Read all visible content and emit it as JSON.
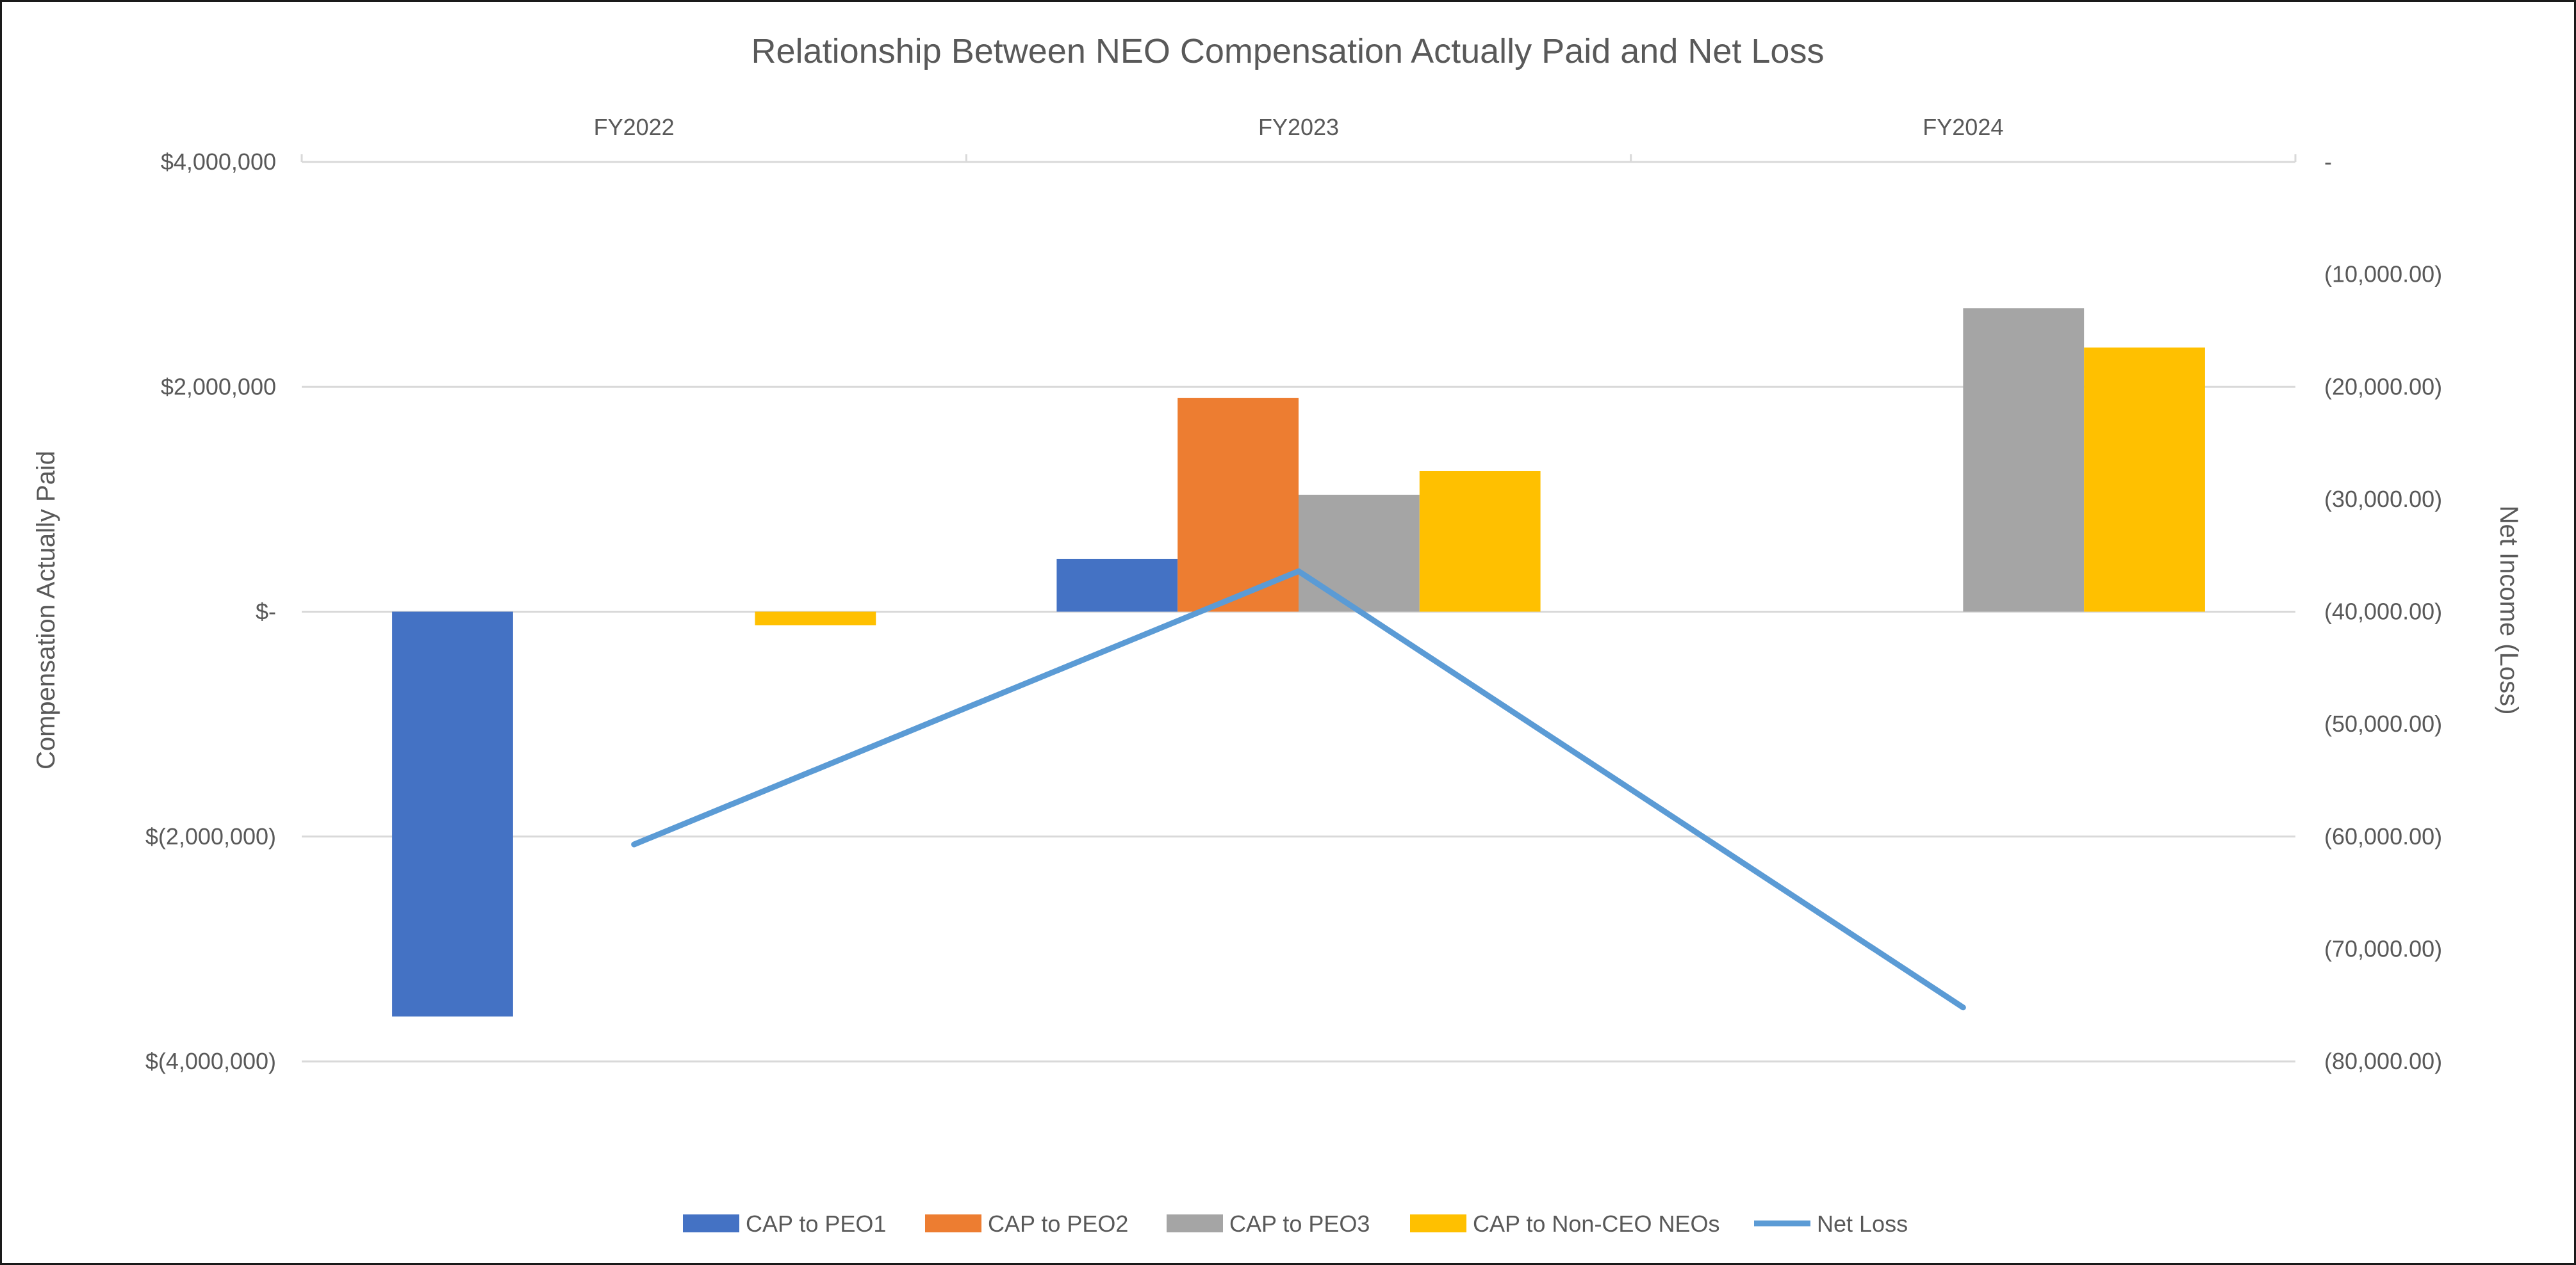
{
  "chart_data": {
    "type": "bar",
    "title": "Relationship Between NEO Compensation Actually Paid and Net Loss",
    "categories": [
      "FY2022",
      "FY2023",
      "FY2024"
    ],
    "ylabel": "Compensation Actually Paid",
    "y2label": "Net Income (Loss)",
    "ylim": [
      -4000000,
      4000000
    ],
    "y2lim": [
      -80000,
      0
    ],
    "yticks": [
      {
        "value": 4000000,
        "label": "$4,000,000"
      },
      {
        "value": 2000000,
        "label": "$2,000,000"
      },
      {
        "value": 0,
        "label": "$-"
      },
      {
        "value": -2000000,
        "label": "$(2,000,000)"
      },
      {
        "value": -4000000,
        "label": "$(4,000,000)"
      }
    ],
    "y2ticks": [
      {
        "value": 0,
        "label": "-"
      },
      {
        "value": -10000,
        "label": "(10,000.00)"
      },
      {
        "value": -20000,
        "label": "(20,000.00)"
      },
      {
        "value": -30000,
        "label": "(30,000.00)"
      },
      {
        "value": -40000,
        "label": "(40,000.00)"
      },
      {
        "value": -50000,
        "label": "(50,000.00)"
      },
      {
        "value": -60000,
        "label": "(60,000.00)"
      },
      {
        "value": -70000,
        "label": "(70,000.00)"
      },
      {
        "value": -80000,
        "label": "(80,000.00)"
      }
    ],
    "grid": true,
    "legend_position": "bottom",
    "series": [
      {
        "name": "CAP to PEO1",
        "type": "bar",
        "color": "#4472C4",
        "values": [
          -3600000,
          470000,
          null
        ]
      },
      {
        "name": "CAP to PEO2",
        "type": "bar",
        "color": "#ED7D31",
        "values": [
          null,
          1900000,
          null
        ]
      },
      {
        "name": "CAP to PEO3",
        "type": "bar",
        "color": "#A5A5A5",
        "values": [
          null,
          1040000,
          2700000
        ]
      },
      {
        "name": "CAP to Non-CEO NEOs",
        "type": "bar",
        "color": "#FFC000",
        "values": [
          -120000,
          1250000,
          2350000
        ]
      },
      {
        "name": "Net Loss",
        "type": "line",
        "axis": "right",
        "color": "#5B9BD5",
        "values": [
          -60700,
          -36400,
          -75200
        ]
      }
    ]
  }
}
